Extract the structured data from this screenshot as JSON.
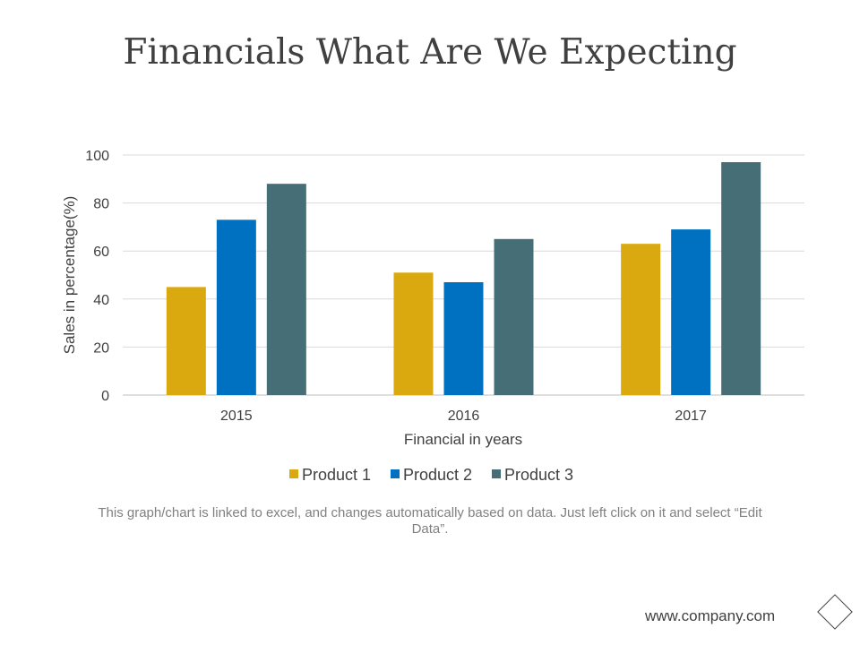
{
  "slide": {
    "title": "Financials What Are We Expecting",
    "footnote": "This graph/chart is linked to excel, and changes automatically based on data. Just left click on it and select “Edit Data”.",
    "footer_url": "www.company.com"
  },
  "chart_data": {
    "type": "bar",
    "title": "",
    "categories": [
      "2015",
      "2016",
      "2017"
    ],
    "series": [
      {
        "name": "Product 1",
        "color": "#D9A90F",
        "values": [
          45,
          51,
          63
        ]
      },
      {
        "name": "Product 2",
        "color": "#0070C0",
        "values": [
          73,
          47,
          69
        ]
      },
      {
        "name": "Product 3",
        "color": "#466E77",
        "values": [
          88,
          65,
          97
        ]
      }
    ],
    "xlabel": "Financial in years",
    "ylabel": "Sales in percentage(%)",
    "ylim": [
      0,
      100
    ],
    "yticks": [
      0,
      20,
      40,
      60,
      80,
      100
    ],
    "grid": true,
    "legend": "bottom"
  }
}
